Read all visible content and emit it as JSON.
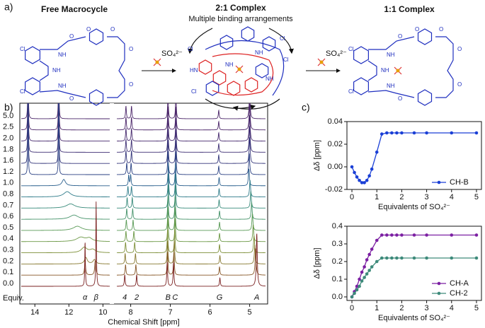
{
  "panel_a": {
    "label": "a)",
    "titles": [
      "Free Macrocycle",
      "2:1 Complex",
      "1:1 Complex"
    ],
    "subtitle": "Multiple binding arrangements",
    "anion": "SO₄²⁻",
    "free_atoms": [
      "Cl",
      "Cl",
      "NH",
      "NH",
      "NH",
      "O",
      "O",
      "O",
      "O",
      "O",
      "O"
    ],
    "complex21_atoms": [
      "Cl",
      "Cl",
      "Cl",
      "Cl",
      "NH",
      "HN",
      "NH",
      "NH"
    ],
    "complex11_atoms": [
      "Cl",
      "Cl",
      "NH",
      "NH",
      "NH",
      "O",
      "O",
      "O",
      "O",
      "O",
      "O"
    ]
  },
  "panel_b": {
    "label": "b)",
    "type": "nmr-stack",
    "xlabel": "Chemical Shift [ppm]",
    "equiv_label": "Equiv.",
    "left_xlim": [
      14.8,
      9.6
    ],
    "right_xlim": [
      8.35,
      4.6
    ],
    "left_xticks": [
      14,
      12,
      10
    ],
    "right_xticks": [
      8,
      7,
      6,
      5
    ],
    "peak_labels": [
      {
        "text": "α",
        "ppm": 11.05
      },
      {
        "text": "β",
        "ppm": 10.4
      },
      {
        "text": "4",
        "ppm": 8.15
      },
      {
        "text": "2",
        "ppm": 7.85
      },
      {
        "text": "B",
        "ppm": 7.06
      },
      {
        "text": "C",
        "ppm": 6.88
      },
      {
        "text": "G",
        "ppm": 5.76
      },
      {
        "text": "A",
        "ppm": 4.82
      }
    ],
    "series": [
      {
        "name": "5.0",
        "color": "#4a2468",
        "peaks_left": [
          [
            14.4,
            9,
            0.015
          ],
          [
            12.6,
            9,
            0.015
          ]
        ],
        "peaks_right": [
          [
            8.12,
            1.2,
            0.012
          ],
          [
            7.98,
            1.2,
            0.012
          ],
          [
            7.06,
            2.2,
            0.012
          ],
          [
            6.86,
            2.2,
            0.012
          ],
          [
            5.78,
            0.8,
            0.012
          ],
          [
            5.0,
            2.5,
            0.015
          ]
        ]
      },
      {
        "name": "2.5",
        "color": "#4a2468",
        "peaks_left": [
          [
            14.4,
            9,
            0.015
          ],
          [
            12.6,
            9,
            0.015
          ]
        ],
        "peaks_right": [
          [
            8.12,
            1.2,
            0.012
          ],
          [
            7.98,
            1.2,
            0.012
          ],
          [
            7.06,
            2.2,
            0.012
          ],
          [
            6.86,
            2.2,
            0.012
          ],
          [
            5.78,
            0.8,
            0.012
          ],
          [
            5.0,
            2.5,
            0.015
          ]
        ]
      },
      {
        "name": "2.0",
        "color": "#472a6e",
        "peaks_left": [
          [
            14.4,
            9,
            0.015
          ],
          [
            12.6,
            9,
            0.015
          ]
        ],
        "peaks_right": [
          [
            8.12,
            1.2,
            0.012
          ],
          [
            7.98,
            1.2,
            0.012
          ],
          [
            7.06,
            2.2,
            0.012
          ],
          [
            6.86,
            2.2,
            0.012
          ],
          [
            5.78,
            0.8,
            0.012
          ],
          [
            5.0,
            2.5,
            0.015
          ]
        ]
      },
      {
        "name": "1.8",
        "color": "#3e2f74",
        "peaks_left": [
          [
            14.4,
            9,
            0.015
          ],
          [
            12.6,
            9,
            0.015
          ]
        ],
        "peaks_right": [
          [
            8.12,
            1.2,
            0.012
          ],
          [
            7.98,
            1.2,
            0.012
          ],
          [
            7.06,
            2.2,
            0.012
          ],
          [
            6.86,
            2.2,
            0.012
          ],
          [
            5.78,
            0.8,
            0.012
          ],
          [
            5.0,
            2.5,
            0.015
          ]
        ]
      },
      {
        "name": "1.6",
        "color": "#33357a",
        "peaks_left": [
          [
            14.4,
            9,
            0.015
          ],
          [
            12.6,
            9,
            0.015
          ]
        ],
        "peaks_right": [
          [
            8.12,
            1.2,
            0.012
          ],
          [
            7.98,
            1.2,
            0.012
          ],
          [
            7.06,
            2.2,
            0.012
          ],
          [
            6.86,
            2.2,
            0.012
          ],
          [
            5.78,
            0.8,
            0.012
          ],
          [
            5.0,
            2.5,
            0.015
          ]
        ]
      },
      {
        "name": "1.2",
        "color": "#283f82",
        "peaks_left": [
          [
            14.4,
            9,
            0.015
          ],
          [
            12.6,
            9,
            0.015
          ]
        ],
        "peaks_right": [
          [
            8.1,
            1.1,
            0.012
          ],
          [
            7.99,
            1.1,
            0.012
          ],
          [
            7.06,
            2.2,
            0.012
          ],
          [
            6.86,
            2.2,
            0.012
          ],
          [
            5.78,
            0.8,
            0.012
          ],
          [
            5.01,
            2,
            0.015
          ]
        ]
      },
      {
        "name": "1.0",
        "color": "#275d8c",
        "peaks_left": [
          [
            12.3,
            0.6,
            0.12
          ]
        ],
        "peaks_right": [
          [
            8.05,
            1,
            0.012
          ],
          [
            8.0,
            1,
            0.012
          ],
          [
            7.05,
            2.2,
            0.012
          ],
          [
            6.87,
            2.2,
            0.012
          ],
          [
            5.77,
            0.8,
            0.012
          ],
          [
            5.02,
            1.6,
            0.015
          ]
        ]
      },
      {
        "name": "0.8",
        "color": "#2c7a88",
        "peaks_left": [
          [
            12.1,
            0.5,
            0.25
          ]
        ],
        "peaks_right": [
          [
            8.07,
            1,
            0.012
          ],
          [
            7.98,
            1,
            0.012
          ],
          [
            7.05,
            2.2,
            0.012
          ],
          [
            6.87,
            2.2,
            0.012
          ],
          [
            5.77,
            0.8,
            0.012
          ],
          [
            4.99,
            1.6,
            0.015
          ]
        ]
      },
      {
        "name": "0.7",
        "color": "#378a7a",
        "peaks_left": [
          [
            11.9,
            0.4,
            0.3
          ]
        ],
        "peaks_right": [
          [
            8.09,
            1,
            0.012
          ],
          [
            7.96,
            1,
            0.012
          ],
          [
            7.05,
            2.2,
            0.012
          ],
          [
            6.87,
            2.2,
            0.012
          ],
          [
            5.77,
            0.8,
            0.012
          ],
          [
            4.97,
            1.6,
            0.015
          ]
        ]
      },
      {
        "name": "0.6",
        "color": "#46936a",
        "peaks_left": [
          [
            11.7,
            0.4,
            0.3
          ]
        ],
        "peaks_right": [
          [
            8.1,
            1,
            0.012
          ],
          [
            7.95,
            1,
            0.012
          ],
          [
            7.06,
            2.2,
            0.012
          ],
          [
            6.88,
            2.2,
            0.012
          ],
          [
            5.76,
            0.8,
            0.012
          ],
          [
            4.95,
            1.6,
            0.015
          ]
        ]
      },
      {
        "name": "0.5",
        "color": "#599a56",
        "peaks_left": [
          [
            11.5,
            0.4,
            0.3
          ]
        ],
        "peaks_right": [
          [
            8.11,
            1,
            0.012
          ],
          [
            7.94,
            1,
            0.012
          ],
          [
            7.06,
            2.2,
            0.012
          ],
          [
            6.88,
            2.2,
            0.012
          ],
          [
            5.76,
            0.8,
            0.012
          ],
          [
            4.93,
            1.6,
            0.015
          ]
        ]
      },
      {
        "name": "0.4",
        "color": "#6b9845",
        "peaks_left": [
          [
            11.3,
            0.4,
            0.3
          ],
          [
            10.8,
            0.3,
            0.2
          ]
        ],
        "peaks_right": [
          [
            8.12,
            1,
            0.012
          ],
          [
            7.92,
            1,
            0.012
          ],
          [
            7.06,
            2.2,
            0.012
          ],
          [
            6.88,
            2.2,
            0.012
          ],
          [
            5.76,
            0.8,
            0.012
          ],
          [
            4.91,
            1.6,
            0.015
          ]
        ]
      },
      {
        "name": "0.3",
        "color": "#7d8f37",
        "peaks_left": [
          [
            11.1,
            0.5,
            0.2
          ],
          [
            10.6,
            0.3,
            0.2
          ]
        ],
        "peaks_right": [
          [
            8.13,
            1,
            0.012
          ],
          [
            7.9,
            1,
            0.012
          ],
          [
            7.07,
            2.2,
            0.012
          ],
          [
            6.89,
            2.2,
            0.012
          ],
          [
            5.76,
            0.8,
            0.012
          ],
          [
            4.89,
            1.6,
            0.015
          ]
        ]
      },
      {
        "name": "0.2",
        "color": "#86782e",
        "peaks_left": [
          [
            11.0,
            0.6,
            0.1
          ],
          [
            10.5,
            0.4,
            0.1
          ]
        ],
        "peaks_right": [
          [
            8.14,
            1,
            0.012
          ],
          [
            7.88,
            1,
            0.012
          ],
          [
            7.07,
            2.2,
            0.012
          ],
          [
            6.9,
            2.2,
            0.012
          ],
          [
            5.75,
            0.8,
            0.012
          ],
          [
            4.87,
            1.8,
            0.015
          ]
        ]
      },
      {
        "name": "0.1",
        "color": "#875727",
        "peaks_left": [
          [
            11.05,
            1.2,
            0.04
          ],
          [
            10.45,
            1.4,
            0.04
          ]
        ],
        "peaks_right": [
          [
            8.13,
            1,
            0.012
          ],
          [
            7.87,
            1,
            0.012
          ],
          [
            7.07,
            2.2,
            0.012
          ],
          [
            6.91,
            2.2,
            0.012
          ],
          [
            5.76,
            0.8,
            0.012
          ],
          [
            4.85,
            2.5,
            0.015
          ]
        ]
      },
      {
        "name": "0.0",
        "color": "#7a1f1f",
        "peaks_left": [
          [
            11.05,
            4.3,
            0.02
          ],
          [
            10.4,
            8,
            0.02
          ]
        ],
        "peaks_right": [
          [
            8.15,
            1.1,
            0.012
          ],
          [
            7.85,
            1.1,
            0.012
          ],
          [
            7.08,
            2.3,
            0.012
          ],
          [
            6.92,
            2.3,
            0.012
          ],
          [
            5.75,
            0.8,
            0.012
          ],
          [
            4.82,
            5,
            0.015
          ]
        ]
      }
    ]
  },
  "panel_c": {
    "label": "c)",
    "charts": [
      {
        "type": "line",
        "ylabel": "Δδ [ppm]",
        "xlabel": "Equivalents of SO₄²⁻",
        "xlim": [
          -0.2,
          5.2
        ],
        "xticks": [
          0,
          1,
          2,
          3,
          4,
          5
        ],
        "ylim": [
          -0.02,
          0.04
        ],
        "yticks": [
          -0.02,
          {
            "value": 0,
            "label": "0.00"
          },
          0.02,
          0.04
        ],
        "legend": "lower right",
        "x": [
          0,
          0.1,
          0.2,
          0.3,
          0.4,
          0.5,
          0.6,
          0.7,
          0.8,
          1.0,
          1.2,
          1.4,
          1.6,
          1.8,
          2.0,
          2.5,
          3.0,
          4.0,
          5.0
        ],
        "series": [
          {
            "name": "CH-B",
            "color": "#1a3fd6",
            "values": [
              0,
              -0.005,
              -0.009,
              -0.012,
              -0.014,
              -0.014,
              -0.012,
              -0.008,
              -0.002,
              0.013,
              0.029,
              0.03,
              0.03,
              0.03,
              0.03,
              0.03,
              0.03,
              0.03,
              0.03
            ]
          }
        ]
      },
      {
        "type": "line",
        "ylabel": "Δδ [ppm]",
        "xlabel": "Equivalents of SO₄²⁻",
        "xlim": [
          -0.2,
          5.2
        ],
        "xticks": [
          0,
          1,
          2,
          3,
          4,
          5
        ],
        "ylim": [
          -0.02,
          0.4
        ],
        "yticks": [
          {
            "value": 0,
            "label": "0.0"
          },
          0.1,
          0.2,
          0.3,
          0.4
        ],
        "legend": "lower right",
        "x": [
          0,
          0.1,
          0.2,
          0.3,
          0.4,
          0.5,
          0.6,
          0.7,
          0.8,
          1.0,
          1.2,
          1.4,
          1.6,
          1.8,
          2.0,
          2.5,
          3.0,
          4.0,
          5.0
        ],
        "series": [
          {
            "name": "CH-A",
            "color": "#7b1fa2",
            "values": [
              0,
              0.03,
              0.06,
              0.1,
              0.14,
              0.17,
              0.21,
              0.24,
              0.27,
              0.32,
              0.35,
              0.35,
              0.35,
              0.35,
              0.35,
              0.35,
              0.35,
              0.35,
              0.35
            ]
          },
          {
            "name": "CH-2",
            "color": "#3d8a7a",
            "values": [
              0,
              0.02,
              0.04,
              0.06,
              0.09,
              0.11,
              0.13,
              0.15,
              0.17,
              0.2,
              0.22,
              0.22,
              0.22,
              0.22,
              0.22,
              0.22,
              0.22,
              0.22,
              0.22
            ]
          }
        ]
      }
    ]
  }
}
